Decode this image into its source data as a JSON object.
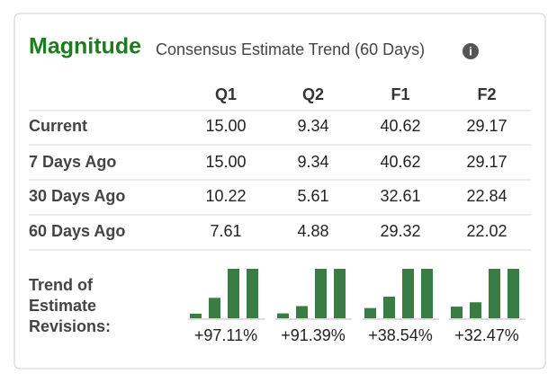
{
  "header": {
    "title": "Magnitude",
    "subtitle": "Consensus Estimate Trend (60 Days)"
  },
  "table": {
    "columns": [
      "Q1",
      "Q2",
      "F1",
      "F2"
    ],
    "rows": [
      {
        "label": "Current",
        "values": [
          "15.00",
          "9.34",
          "40.62",
          "29.17"
        ]
      },
      {
        "label": "7 Days Ago",
        "values": [
          "15.00",
          "9.34",
          "40.62",
          "29.17"
        ]
      },
      {
        "label": "30 Days Ago",
        "values": [
          "10.22",
          "5.61",
          "32.61",
          "22.84"
        ]
      },
      {
        "label": "60 Days Ago",
        "values": [
          "7.61",
          "4.88",
          "29.32",
          "22.02"
        ]
      }
    ]
  },
  "trend": {
    "label": [
      "Trend of",
      "Estimate",
      "Revisions:"
    ],
    "changes": [
      "+97.11%",
      "+91.39%",
      "+38.54%",
      "+32.47%"
    ]
  }
}
